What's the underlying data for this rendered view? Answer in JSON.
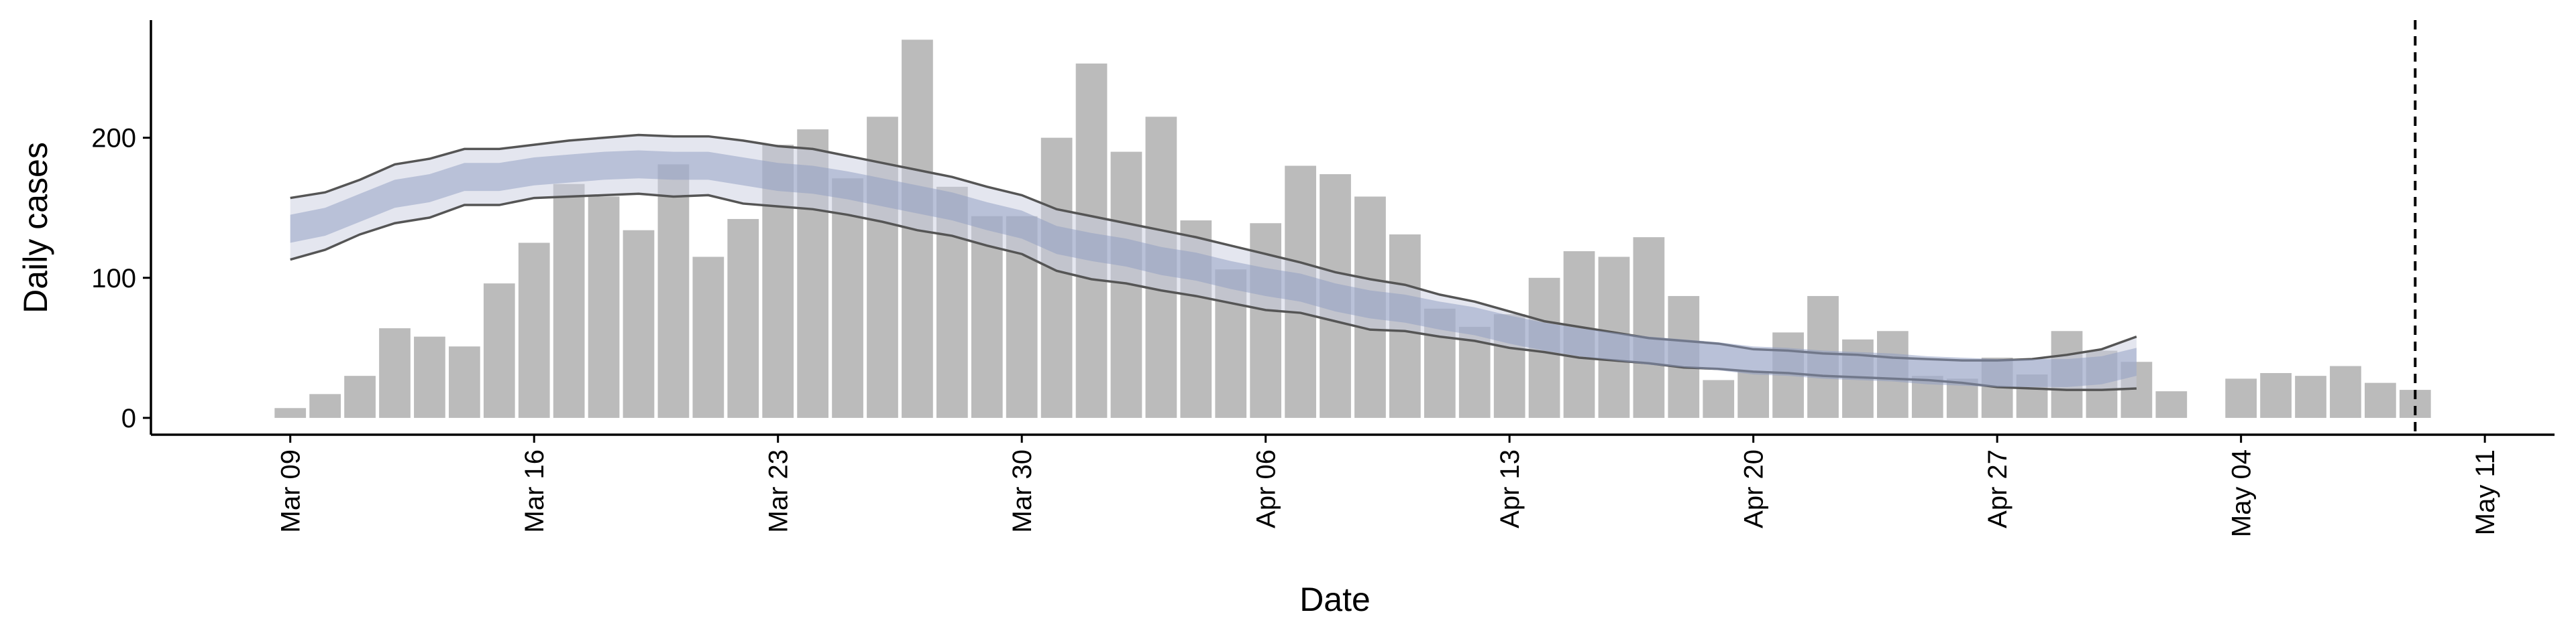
{
  "chart_data": {
    "type": "bar",
    "x_label": "Date",
    "y_label": "Daily cases",
    "x": [
      "Mar 09",
      "Mar 10",
      "Mar 11",
      "Mar 12",
      "Mar 13",
      "Mar 14",
      "Mar 15",
      "Mar 16",
      "Mar 17",
      "Mar 18",
      "Mar 19",
      "Mar 20",
      "Mar 21",
      "Mar 22",
      "Mar 23",
      "Mar 24",
      "Mar 25",
      "Mar 26",
      "Mar 27",
      "Mar 28",
      "Mar 29",
      "Mar 30",
      "Mar 31",
      "Apr 01",
      "Apr 02",
      "Apr 03",
      "Apr 04",
      "Apr 05",
      "Apr 06",
      "Apr 07",
      "Apr 08",
      "Apr 09",
      "Apr 10",
      "Apr 11",
      "Apr 12",
      "Apr 13",
      "Apr 14",
      "Apr 15",
      "Apr 16",
      "Apr 17",
      "Apr 18",
      "Apr 19",
      "Apr 20",
      "Apr 21",
      "Apr 22",
      "Apr 23",
      "Apr 24",
      "Apr 25",
      "Apr 26",
      "Apr 27",
      "Apr 28",
      "Apr 29",
      "Apr 30",
      "May 01",
      "May 02",
      "May 03",
      "May 04",
      "May 05",
      "May 06",
      "May 07",
      "May 08",
      "May 09"
    ],
    "values": [
      7,
      17,
      30,
      64,
      58,
      51,
      96,
      125,
      167,
      158,
      134,
      181,
      115,
      142,
      195,
      206,
      171,
      215,
      270,
      165,
      144,
      144,
      200,
      253,
      190,
      215,
      141,
      106,
      139,
      180,
      174,
      158,
      131,
      78,
      65,
      74,
      100,
      119,
      115,
      129,
      87,
      27,
      33,
      61,
      87,
      56,
      62,
      30,
      28,
      43,
      31,
      62,
      48,
      40,
      19,
      null,
      28,
      32,
      30,
      37,
      25,
      20
    ],
    "color": "#bbbbbb",
    "bands": [
      {
        "color": "#c9cee0",
        "lower": [
          113,
          120,
          131,
          139,
          143,
          152,
          152,
          157,
          158,
          159,
          160,
          158,
          159,
          153,
          151,
          149,
          145,
          140,
          134,
          130,
          123,
          117,
          105,
          99,
          96,
          91,
          87,
          82,
          77,
          75,
          69,
          63,
          62,
          58,
          55,
          50,
          47,
          43,
          41,
          39,
          36,
          35,
          33,
          32,
          30,
          29,
          28,
          27,
          25,
          22,
          21,
          20,
          20,
          21,
          null,
          null,
          null,
          null,
          null,
          null,
          null,
          null
        ],
        "upper": [
          157,
          161,
          170,
          181,
          185,
          192,
          192,
          195,
          198,
          200,
          202,
          201,
          201,
          198,
          194,
          192,
          187,
          182,
          177,
          172,
          165,
          159,
          149,
          144,
          139,
          134,
          129,
          123,
          117,
          111,
          104,
          99,
          95,
          88,
          83,
          76,
          69,
          65,
          61,
          57,
          55,
          53,
          49,
          48,
          46,
          45,
          43,
          42,
          41,
          41,
          42,
          45,
          49,
          58,
          null,
          null,
          null,
          null,
          null,
          null,
          null,
          null
        ],
        "line_color": "#555555"
      },
      {
        "color": "#8d9bc2",
        "lower": [
          125,
          130,
          140,
          150,
          154,
          162,
          162,
          166,
          168,
          170,
          171,
          170,
          170,
          166,
          162,
          160,
          156,
          151,
          146,
          141,
          134,
          128,
          117,
          112,
          108,
          102,
          98,
          92,
          87,
          83,
          76,
          71,
          68,
          63,
          59,
          53,
          48,
          44,
          41,
          38,
          36,
          34,
          31,
          30,
          28,
          27,
          26,
          24,
          23,
          22,
          22,
          22,
          24,
          30,
          null,
          null,
          null,
          null,
          null,
          null,
          null,
          null
        ],
        "upper": [
          145,
          150,
          160,
          170,
          174,
          182,
          182,
          186,
          188,
          190,
          191,
          190,
          190,
          186,
          182,
          180,
          176,
          171,
          166,
          161,
          154,
          148,
          137,
          132,
          128,
          122,
          118,
          112,
          107,
          103,
          96,
          91,
          88,
          83,
          79,
          73,
          68,
          64,
          61,
          58,
          56,
          54,
          51,
          50,
          48,
          47,
          46,
          44,
          43,
          42,
          42,
          42,
          44,
          50,
          null,
          null,
          null,
          null,
          null,
          null,
          null,
          null
        ]
      }
    ],
    "vline": "May 09",
    "xlim": [
      "Mar 05",
      "May 13"
    ],
    "xticks": [
      "Mar 09",
      "Mar 16",
      "Mar 23",
      "Mar 30",
      "Apr 06",
      "Apr 13",
      "Apr 20",
      "Apr 27",
      "May 04",
      "May 11"
    ],
    "ylim": [
      -12,
      284
    ],
    "yticks": [
      0,
      100,
      200
    ],
    "grid": false
  }
}
